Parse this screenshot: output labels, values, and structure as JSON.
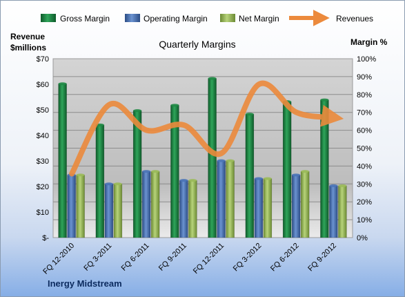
{
  "chart_data": {
    "type": "bar",
    "title": "Quarterly Margins",
    "company": "Inergy Midstream",
    "left_axis_label_lines": [
      "Revenue",
      "$millions"
    ],
    "right_axis_label": "Margin %",
    "categories": [
      "FQ 12-2010",
      "FQ 3-2011",
      "FQ 6-2011",
      "FQ 9-2011",
      "FQ 12-2011",
      "FQ 3-2012",
      "FQ 6-2012",
      "FQ 9-2012"
    ],
    "left_ylim": [
      0,
      70
    ],
    "left_ticks": [
      "$-",
      "$10",
      "$20",
      "$30",
      "$40",
      "$50",
      "$60",
      "$70"
    ],
    "right_ylim": [
      0,
      100
    ],
    "right_ticks": [
      "0%",
      "10%",
      "20%",
      "30%",
      "40%",
      "50%",
      "60%",
      "70%",
      "80%",
      "90%",
      "100%"
    ],
    "series": [
      {
        "name": "Gross Margin",
        "axis": "right",
        "color": "#1f8a45",
        "values": [
          86,
          63,
          71,
          74,
          89,
          69,
          76,
          77
        ]
      },
      {
        "name": "Operating Margin",
        "axis": "right",
        "color": "#4a74b8",
        "values": [
          35,
          30,
          37,
          32,
          43,
          33,
          35,
          29
        ]
      },
      {
        "name": "Net Margin",
        "axis": "right",
        "color": "#9bbb59",
        "values": [
          35,
          30,
          37,
          32,
          43,
          33,
          37,
          29
        ]
      },
      {
        "name": "Revenues",
        "axis": "left",
        "type": "line",
        "color": "#ec8a3c",
        "values": [
          25,
          52,
          42,
          44,
          33,
          60,
          49,
          47
        ]
      }
    ],
    "grid": true,
    "legend_position": "top"
  }
}
